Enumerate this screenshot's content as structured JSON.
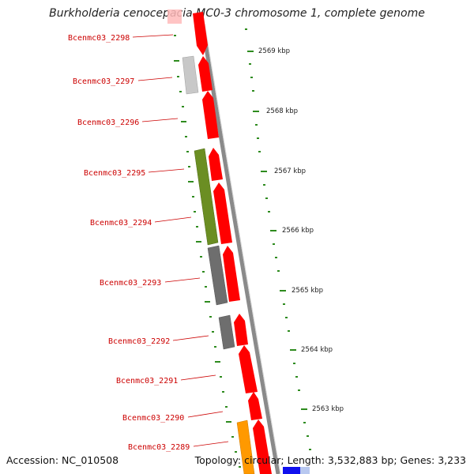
{
  "title": "Burkholderia cenocepacia MC0-3 chromosome 1, complete genome",
  "accession": "Accession: NC_010508",
  "summary": "Topology: circular; Length: 3,532,883 bp; Genes: 3,233",
  "colors": {
    "cds": "#ff0000",
    "label": "#cc0000",
    "tick": "#2e8b1e",
    "backbone": "#8a8a8a",
    "olive": "#6b8e23",
    "dark_gray": "#6e6e6e",
    "light_gray": "#c8c8c8",
    "orange": "#ff9900",
    "blue": "#1010ee",
    "faded_red": "#ffbaba"
  },
  "genes": [
    {
      "label": "Bcenmc03_2298"
    },
    {
      "label": "Bcenmc03_2297"
    },
    {
      "label": "Bcenmc03_2296"
    },
    {
      "label": "Bcenmc03_2295"
    },
    {
      "label": "Bcenmc03_2294"
    },
    {
      "label": "Bcenmc03_2293"
    },
    {
      "label": "Bcenmc03_2292"
    },
    {
      "label": "Bcenmc03_2291"
    },
    {
      "label": "Bcenmc03_2290"
    },
    {
      "label": "Bcenmc03_2289"
    }
  ],
  "scale_labels": [
    "2569 kbp",
    "2568 kbp",
    "2567 kbp",
    "2566 kbp",
    "2565 kbp",
    "2564 kbp",
    "2563 kbp"
  ]
}
